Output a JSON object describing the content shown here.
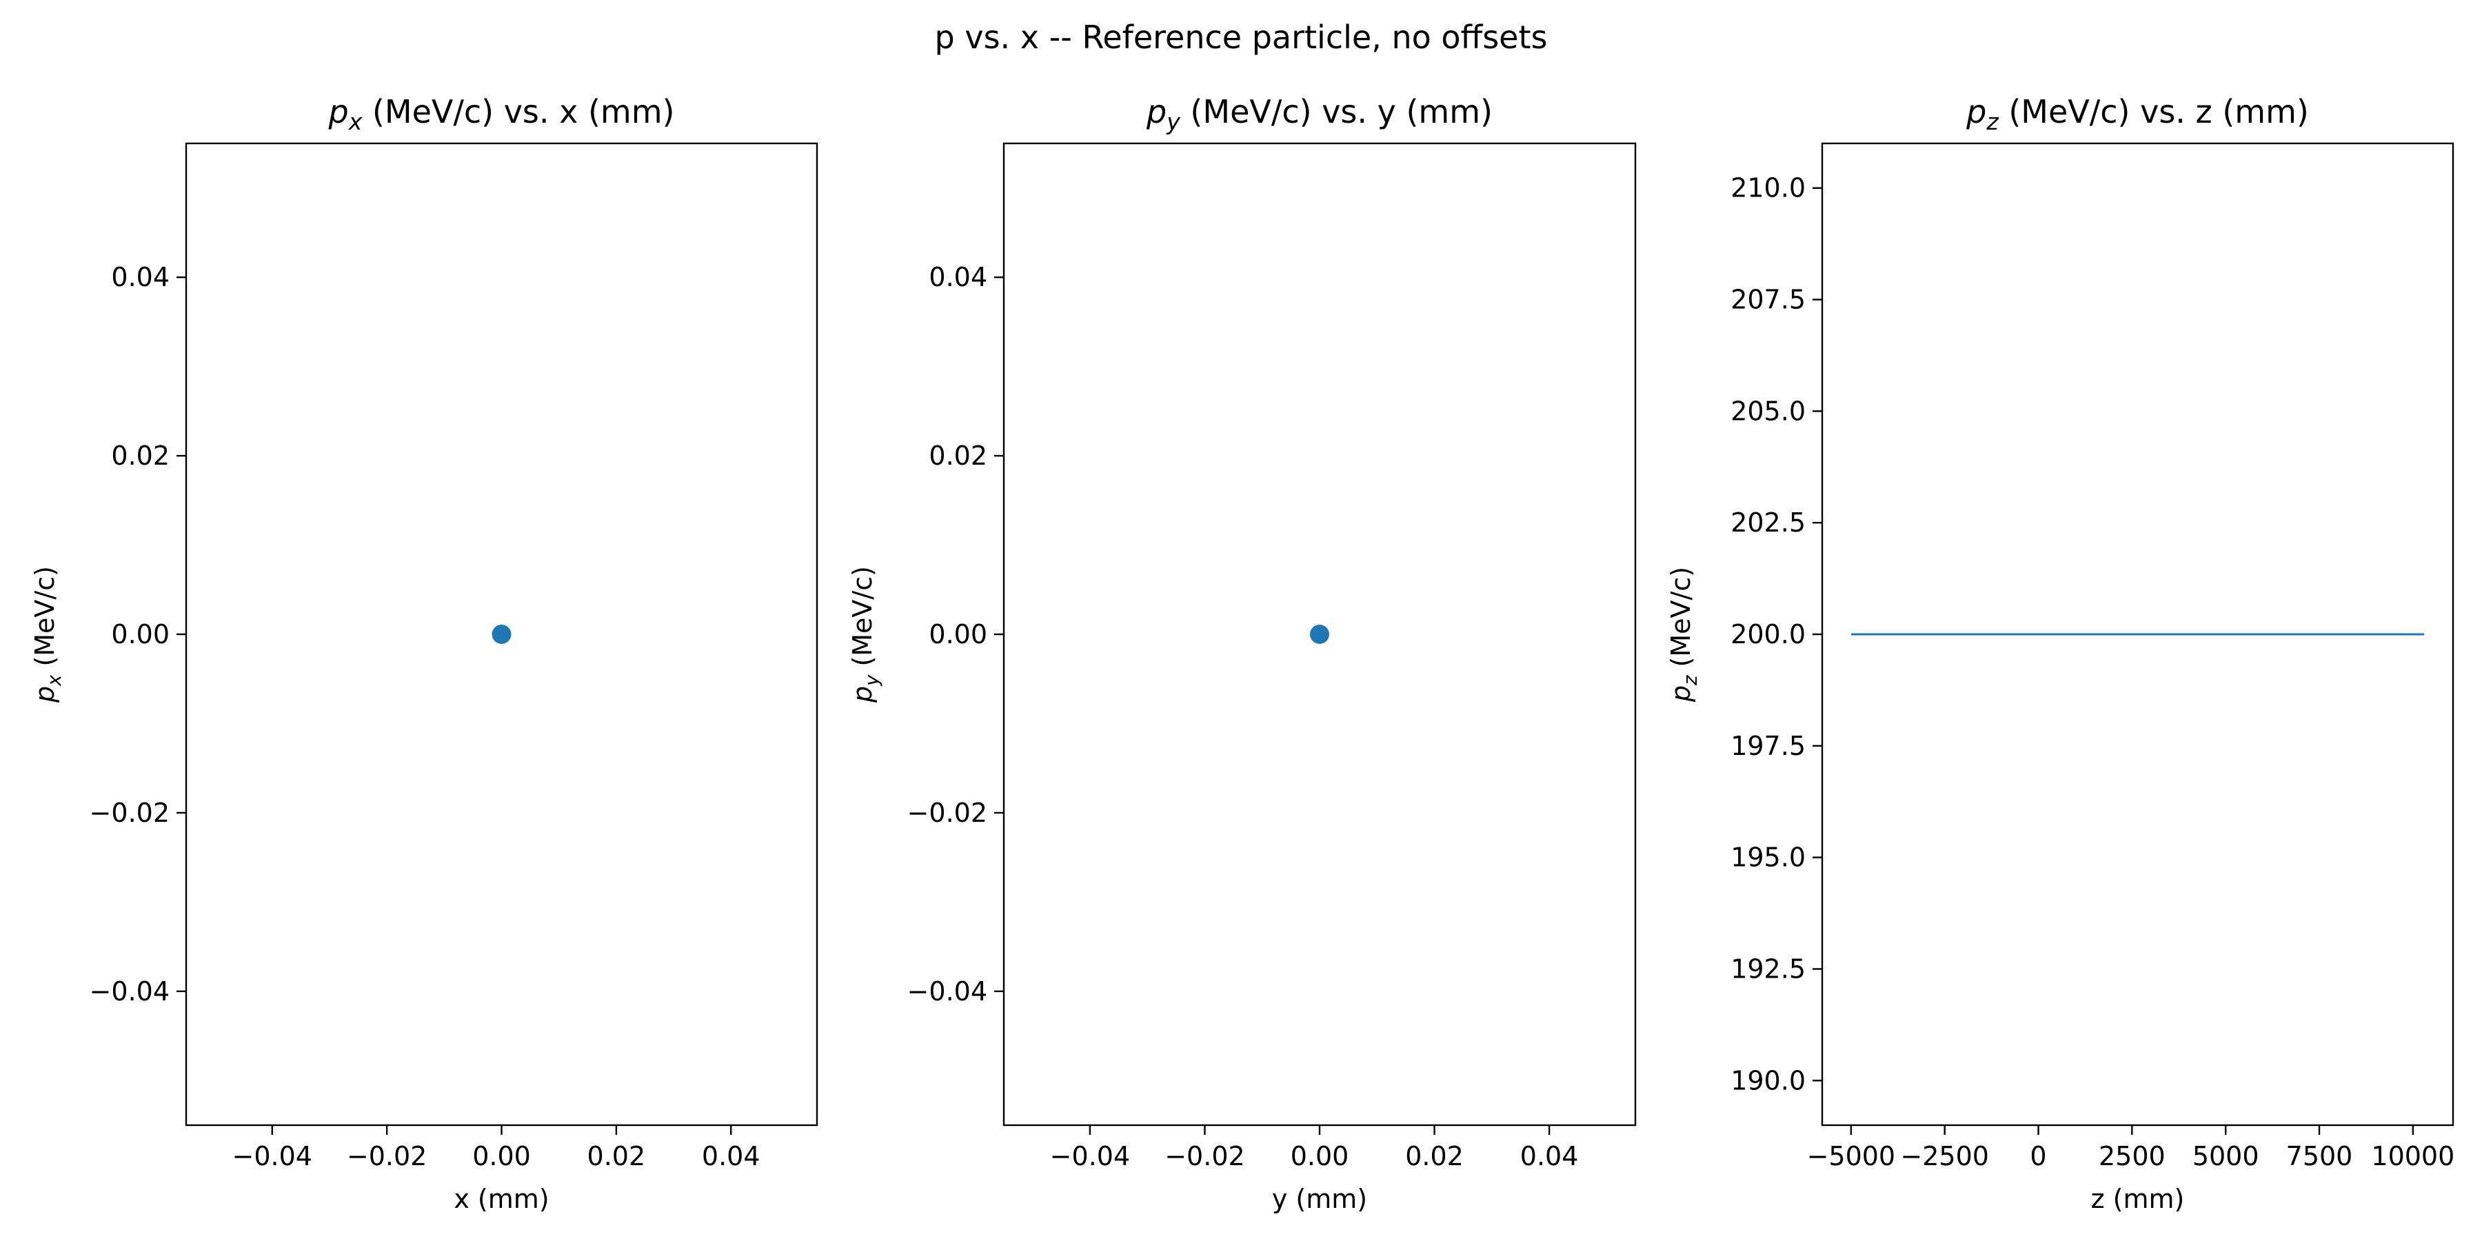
{
  "suptitle": "p vs. x -- Reference particle, no offsets",
  "chart_data": [
    {
      "type": "scatter",
      "title": {
        "sym": "p",
        "sub": "x",
        "rest": " (MeV/c) vs. x (mm)"
      },
      "xlabel": "x (mm)",
      "ylabel": {
        "sym": "p",
        "sub": "x",
        "rest": " (MeV/c)"
      },
      "xlim": [
        -0.055,
        0.055
      ],
      "ylim": [
        -0.055,
        0.055
      ],
      "xticks": [
        -0.04,
        -0.02,
        0.0,
        0.02,
        0.04
      ],
      "xtick_labels": [
        "−0.04",
        "−0.02",
        "0.00",
        "0.02",
        "0.04"
      ],
      "yticks": [
        -0.04,
        -0.02,
        0.0,
        0.02,
        0.04
      ],
      "ytick_labels": [
        "−0.04",
        "−0.02",
        "0.00",
        "0.02",
        "0.04"
      ],
      "series": [
        {
          "x": [
            0.0
          ],
          "y": [
            0.0
          ],
          "color": "#1f77b4"
        }
      ],
      "grid": false
    },
    {
      "type": "scatter",
      "title": {
        "sym": "p",
        "sub": "y",
        "rest": " (MeV/c) vs. y (mm)"
      },
      "xlabel": "y (mm)",
      "ylabel": {
        "sym": "p",
        "sub": "y",
        "rest": " (MeV/c)"
      },
      "xlim": [
        -0.055,
        0.055
      ],
      "ylim": [
        -0.055,
        0.055
      ],
      "xticks": [
        -0.04,
        -0.02,
        0.0,
        0.02,
        0.04
      ],
      "xtick_labels": [
        "−0.04",
        "−0.02",
        "0.00",
        "0.02",
        "0.04"
      ],
      "yticks": [
        -0.04,
        -0.02,
        0.0,
        0.02,
        0.04
      ],
      "ytick_labels": [
        "−0.04",
        "−0.02",
        "0.00",
        "0.02",
        "0.04"
      ],
      "series": [
        {
          "x": [
            0.0
          ],
          "y": [
            0.0
          ],
          "color": "#1f77b4"
        }
      ],
      "grid": false
    },
    {
      "type": "line",
      "title": {
        "sym": "p",
        "sub": "z",
        "rest": " (MeV/c) vs. z (mm)"
      },
      "xlabel": "z (mm)",
      "ylabel": {
        "sym": "p",
        "sub": "z",
        "rest": " (MeV/c)"
      },
      "xlim": [
        -5770,
        11070
      ],
      "ylim": [
        189,
        211
      ],
      "xticks": [
        -5000,
        -2500,
        0,
        2500,
        5000,
        7500,
        10000
      ],
      "xtick_labels": [
        "−5000",
        "−2500",
        "0",
        "2500",
        "5000",
        "7500",
        "10000"
      ],
      "yticks": [
        190.0,
        192.5,
        195.0,
        197.5,
        200.0,
        202.5,
        205.0,
        207.5,
        210.0
      ],
      "ytick_labels": [
        "190.0",
        "192.5",
        "195.0",
        "197.5",
        "200.0",
        "202.5",
        "205.0",
        "207.5",
        "210.0"
      ],
      "series": [
        {
          "x": [
            -5000,
            10300
          ],
          "y": [
            200.0,
            200.0
          ],
          "color": "#1f77b4"
        }
      ],
      "grid": false
    }
  ]
}
